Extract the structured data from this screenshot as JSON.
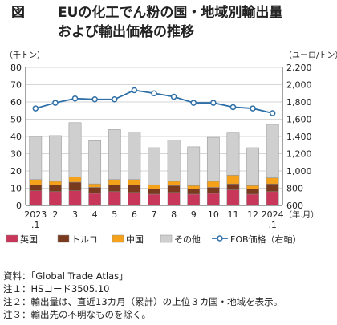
{
  "title": {
    "figure_label": "図",
    "line1": "EUの化工でん粉の国・地域別輸出量",
    "line2": "および輸出価格の推移"
  },
  "chart_data": {
    "type": "bar",
    "stacked": true,
    "categories": [
      "2023\n.1",
      "2",
      "3",
      "4",
      "5",
      "6",
      "7",
      "8",
      "9",
      "10",
      "11",
      "12",
      "2024\n.1"
    ],
    "xlabel": "（年.月）",
    "ylabel_left": "（千トン）",
    "ylabel_right": "（ユーロ/トン）",
    "ylim_left": [
      0,
      80
    ],
    "yticks_left": [
      0,
      10,
      20,
      30,
      40,
      50,
      60,
      70,
      80
    ],
    "ylim_right": [
      600,
      2200
    ],
    "yticks_right": [
      600,
      800,
      1000,
      1200,
      1400,
      1600,
      1800,
      2000,
      2200
    ],
    "grid": true,
    "legend_position": "bottom",
    "series": [
      {
        "name": "英国",
        "color": "#c8365a",
        "axis": "left",
        "kind": "bar",
        "values": [
          8.5,
          8.0,
          8.5,
          7.0,
          8.0,
          7.5,
          6.5,
          7.5,
          6.5,
          7.0,
          9.0,
          6.5,
          8.0
        ]
      },
      {
        "name": "トルコ",
        "color": "#7a3a1e",
        "axis": "left",
        "kind": "bar",
        "values": [
          3.5,
          4.0,
          5.0,
          3.5,
          4.0,
          4.5,
          3.0,
          4.0,
          3.0,
          3.5,
          3.5,
          3.0,
          4.5
        ]
      },
      {
        "name": "中国",
        "color": "#f5a21a",
        "axis": "left",
        "kind": "bar",
        "values": [
          3.0,
          2.0,
          3.0,
          2.0,
          3.0,
          3.0,
          2.5,
          2.5,
          2.0,
          3.5,
          5.0,
          2.0,
          3.5
        ]
      },
      {
        "name": "その他",
        "color": "#cfcfcf",
        "axis": "left",
        "kind": "bar",
        "values": [
          25.0,
          26.5,
          31.5,
          25.0,
          29.0,
          27.5,
          21.5,
          24.0,
          22.5,
          25.5,
          24.5,
          22.0,
          31.0
        ]
      },
      {
        "name": "FOB価格（右軸）",
        "color": "#2e6fa7",
        "axis": "right",
        "kind": "line",
        "values": [
          1725,
          1790,
          1840,
          1830,
          1830,
          1935,
          1900,
          1860,
          1790,
          1790,
          1740,
          1725,
          1670
        ]
      }
    ]
  },
  "notes": [
    "資料：「Global Trade Atlas」",
    "注１：HSコード3505.10",
    "注２：輸出量は、直近13カ月（累計）の上位３カ国・地域を表示。",
    "注３：輸出先の不明なものを除く。"
  ]
}
